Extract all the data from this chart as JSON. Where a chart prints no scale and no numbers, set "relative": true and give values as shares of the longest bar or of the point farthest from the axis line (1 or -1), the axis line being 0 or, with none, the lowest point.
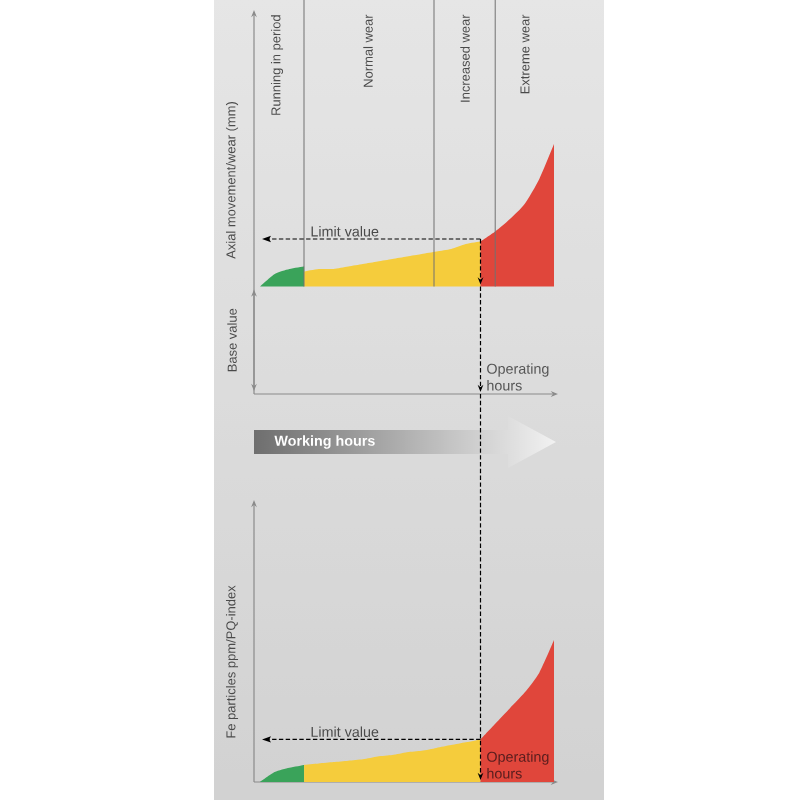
{
  "chart_data": [
    {
      "type": "area",
      "relative": true,
      "grid": "x",
      "xlabel": "Operating hours",
      "ylabel": "Axial movement/wear (mm)",
      "categories": [
        null,
        null,
        null,
        null,
        null,
        null,
        null,
        null,
        null,
        null,
        null,
        null,
        null,
        null,
        null,
        null,
        null,
        null,
        null,
        null,
        null
      ],
      "series": [
        {
          "color": "#3aa35a",
          "values": [
            0.43,
            0.48,
            0.5,
            0.51,
            null,
            null,
            null,
            null,
            null,
            null,
            null,
            null,
            null,
            null,
            null,
            null,
            null,
            null,
            null,
            null,
            null
          ]
        },
        {
          "color": "#f5cc3c",
          "values": [
            null,
            null,
            null,
            0.49,
            0.5,
            0.5,
            0.51,
            0.52,
            0.53,
            0.54,
            0.55,
            0.56,
            0.57,
            0.58,
            0.6,
            0.61,
            null,
            null,
            null,
            null,
            null
          ]
        },
        {
          "color": "#e0463b",
          "values": [
            null,
            null,
            null,
            null,
            null,
            null,
            null,
            null,
            null,
            null,
            null,
            null,
            null,
            null,
            null,
            0.61,
            0.65,
            0.7,
            0.76,
            0.86,
            1
          ]
        }
      ],
      "ref_lines": [
        {
          "axis": "y",
          "value": 0.62,
          "label": "Limit value",
          "line_style": "dashed"
        }
      ],
      "annotations": [
        "Running in period",
        "Normal wear",
        "Increased wear",
        "Extreme wear",
        "Base value",
        "Working hours"
      ]
    },
    {
      "type": "area",
      "relative": true,
      "xlabel": "Operating hours",
      "ylabel": "Fe particles ppm/PQ-index",
      "categories": [
        null,
        null,
        null,
        null,
        null,
        null,
        null,
        null,
        null,
        null,
        null,
        null,
        null,
        null,
        null,
        null,
        null,
        null,
        null,
        null,
        null
      ],
      "series": [
        {
          "color": "#3aa35a",
          "values": [
            0,
            0.07,
            0.1,
            0.12,
            null,
            null,
            null,
            null,
            null,
            null,
            null,
            null,
            null,
            null,
            null,
            null,
            null,
            null,
            null,
            null,
            null
          ]
        },
        {
          "color": "#f5cc3c",
          "values": [
            null,
            null,
            null,
            0.12,
            0.13,
            0.14,
            0.15,
            0.16,
            0.18,
            0.19,
            0.21,
            0.22,
            0.24,
            0.26,
            0.28,
            0.3,
            null,
            null,
            null,
            null,
            null
          ]
        },
        {
          "color": "#e0463b",
          "values": [
            null,
            null,
            null,
            null,
            null,
            null,
            null,
            null,
            null,
            null,
            null,
            null,
            null,
            null,
            null,
            0.3,
            0.41,
            0.52,
            0.63,
            0.77,
            1
          ]
        }
      ],
      "ref_lines": [
        {
          "axis": "y",
          "value": 0.3,
          "label": "Limit value",
          "line_style": "dashed"
        }
      ]
    }
  ]
}
